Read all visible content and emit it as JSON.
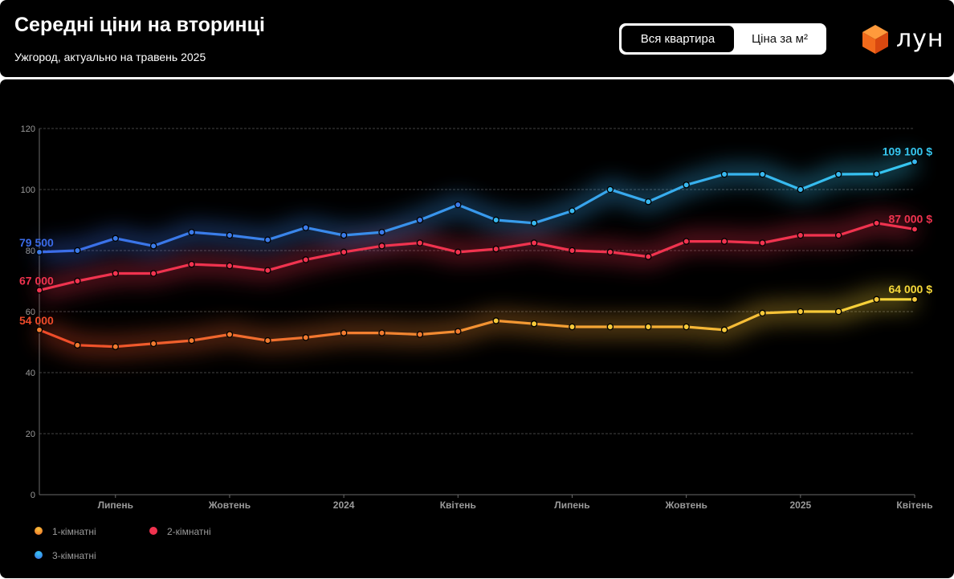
{
  "header": {
    "title": "Середні ціни на вторинці",
    "subtitle": "Ужгород, актуально на травень 2025"
  },
  "toggle": {
    "options": [
      {
        "label": "Вся квартира",
        "active": true
      },
      {
        "label": "Ціна за м²",
        "active": false
      }
    ]
  },
  "logo": {
    "text": "лун"
  },
  "colors": {
    "background": "#000000",
    "grid": "#5a5a5a",
    "axis_text": "#9a9a9a",
    "series_1_start": "#ef4a2a",
    "series_1_end": "#f7d93a",
    "series_2": "#f0334f",
    "series_3_start": "#3b6be8",
    "series_3_end": "#36c7f0"
  },
  "chart_data": {
    "type": "line",
    "title": "Середні ціни на вторинці",
    "xlabel": "",
    "ylabel": "",
    "ylim": [
      0,
      120
    ],
    "yticks": [
      0,
      20,
      40,
      60,
      80,
      100,
      120
    ],
    "grid": true,
    "legend_position": "bottom-left",
    "x_ticks": [
      {
        "index": 2,
        "label": "Липень"
      },
      {
        "index": 5,
        "label": "Жовтень"
      },
      {
        "index": 8,
        "label": "2024"
      },
      {
        "index": 11,
        "label": "Квітень"
      },
      {
        "index": 14,
        "label": "Липень"
      },
      {
        "index": 17,
        "label": "Жовтень"
      },
      {
        "index": 20,
        "label": "2025"
      },
      {
        "index": 23,
        "label": "Квітень"
      }
    ],
    "series": [
      {
        "name": "1-кімнатні",
        "values": [
          54,
          49,
          48.5,
          49.5,
          50.5,
          52.5,
          50.5,
          51.5,
          53,
          53,
          52.5,
          53.5,
          57,
          56,
          55,
          55,
          55,
          55,
          54,
          59.5,
          60,
          60,
          64,
          64
        ],
        "start_label": "54 000",
        "end_label": "64 000 $"
      },
      {
        "name": "2-кімнатні",
        "values": [
          67,
          70,
          72.5,
          72.5,
          75.5,
          75,
          73.5,
          77,
          79.5,
          81.5,
          82.5,
          79.5,
          80.5,
          82.5,
          80,
          79.5,
          78,
          83,
          83,
          82.5,
          85,
          85,
          89,
          87
        ],
        "start_label": "67 000",
        "end_label": "87 000 $"
      },
      {
        "name": "3-кімнатні",
        "values": [
          79.5,
          80,
          84,
          81.5,
          86,
          85,
          83.5,
          87.5,
          85,
          86,
          90,
          95,
          90,
          89,
          93,
          100,
          96,
          101.5,
          105,
          105,
          100,
          105,
          105.1,
          109.1
        ],
        "start_label": "79 500",
        "end_label": "109 100 $"
      }
    ]
  }
}
